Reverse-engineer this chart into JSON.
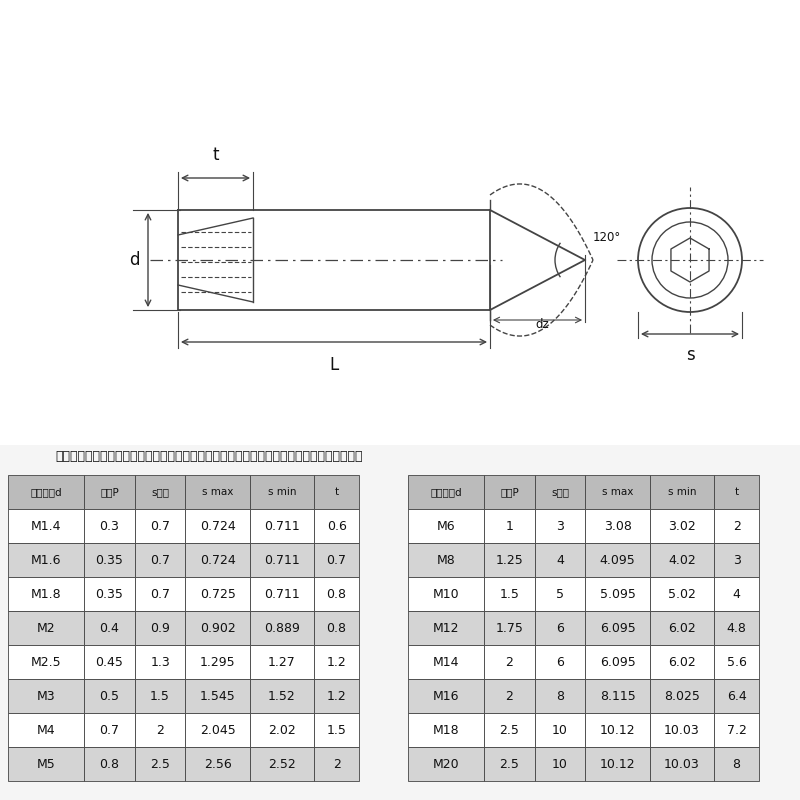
{
  "bg_color": "#f5f5f5",
  "note": "注：以下数据均为单批手工测量结果存在正负公差，具体数据请以实物为准，介意者慎拍！！",
  "table_headers": [
    "螺纹规格d",
    "螺距P",
    "s公称",
    "s max",
    "s min",
    "t"
  ],
  "table_left": [
    [
      "M1.4",
      "0.3",
      "0.7",
      "0.724",
      "0.711",
      "0.6"
    ],
    [
      "M1.6",
      "0.35",
      "0.7",
      "0.724",
      "0.711",
      "0.7"
    ],
    [
      "M1.8",
      "0.35",
      "0.7",
      "0.725",
      "0.711",
      "0.8"
    ],
    [
      "M2",
      "0.4",
      "0.9",
      "0.902",
      "0.889",
      "0.8"
    ],
    [
      "M2.5",
      "0.45",
      "1.3",
      "1.295",
      "1.27",
      "1.2"
    ],
    [
      "M3",
      "0.5",
      "1.5",
      "1.545",
      "1.52",
      "1.2"
    ],
    [
      "M4",
      "0.7",
      "2",
      "2.045",
      "2.02",
      "1.5"
    ],
    [
      "M5",
      "0.8",
      "2.5",
      "2.56",
      "2.52",
      "2"
    ]
  ],
  "table_right": [
    [
      "M6",
      "1",
      "3",
      "3.08",
      "3.02",
      "2"
    ],
    [
      "M8",
      "1.25",
      "4",
      "4.095",
      "4.02",
      "3"
    ],
    [
      "M10",
      "1.5",
      "5",
      "5.095",
      "5.02",
      "4"
    ],
    [
      "M12",
      "1.75",
      "6",
      "6.095",
      "6.02",
      "4.8"
    ],
    [
      "M14",
      "2",
      "6",
      "6.095",
      "6.02",
      "5.6"
    ],
    [
      "M16",
      "2",
      "8",
      "8.115",
      "8.025",
      "6.4"
    ],
    [
      "M18",
      "2.5",
      "10",
      "10.12",
      "10.03",
      "7.2"
    ],
    [
      "M20",
      "2.5",
      "10",
      "10.12",
      "10.03",
      "8"
    ]
  ],
  "row_colors": [
    "#ffffff",
    "#d4d4d4"
  ],
  "header_color": "#bbbbbb",
  "line_color": "#444444",
  "text_color": "#111111",
  "draw_bg": "#ffffff"
}
